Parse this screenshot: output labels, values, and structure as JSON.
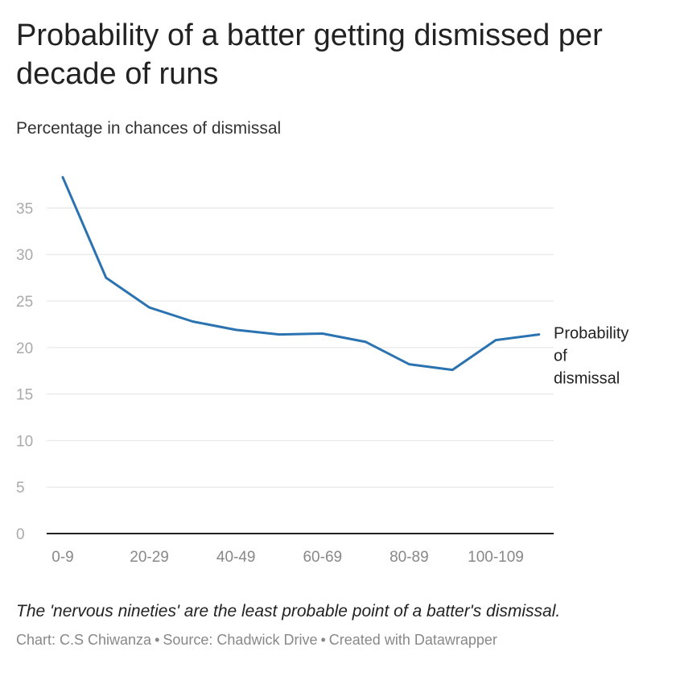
{
  "header": {
    "title": "Probability of a batter getting dismissed per decade of runs",
    "subtitle": "Percentage in chances of dismissal"
  },
  "footer": {
    "notes": "The 'nervous nineties' are the least probable point of a batter's dismissal.",
    "chart_credit": "Chart: C.S Chiwanza",
    "source": "Source: Chadwick Drive",
    "created_with": "Created with Datawrapper",
    "separator": "•"
  },
  "chart_data": {
    "type": "line",
    "title": "Probability of a batter getting dismissed per decade of runs",
    "subtitle": "Percentage in chances of dismissal",
    "xlabel": "",
    "ylabel": "",
    "categories": [
      "0-9",
      "10-19",
      "20-29",
      "30-39",
      "40-49",
      "50-59",
      "60-69",
      "70-79",
      "80-89",
      "90-99",
      "100-109",
      "110-119"
    ],
    "x_tick_labels": [
      "0-9",
      "20-29",
      "40-49",
      "60-69",
      "80-89",
      "100-109"
    ],
    "y_ticks": [
      0,
      5,
      10,
      15,
      20,
      25,
      30,
      35
    ],
    "ylim": [
      0,
      38.5
    ],
    "grid": true,
    "series": [
      {
        "name": "Probability of dismissal",
        "color": "#2a73b0",
        "values": [
          38.3,
          27.5,
          24.3,
          22.8,
          21.9,
          21.4,
          21.5,
          20.6,
          18.2,
          17.6,
          20.8,
          21.4
        ]
      }
    ]
  }
}
